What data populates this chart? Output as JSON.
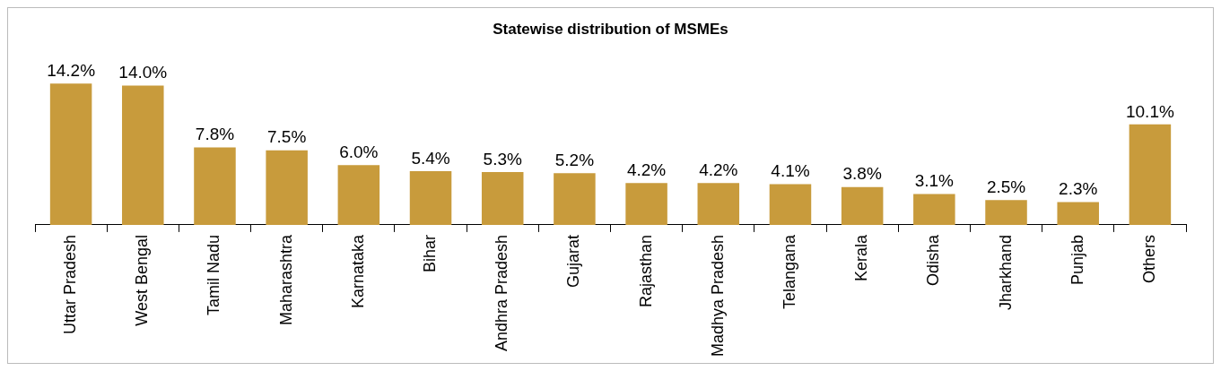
{
  "chart_data": {
    "type": "bar",
    "title": "Statewise distribution of MSMEs",
    "categories": [
      "Uttar Pradesh",
      "West Bengal",
      "Tamil Nadu",
      "Maharashtra",
      "Karnataka",
      "Bihar",
      "Andhra Pradesh",
      "Gujarat",
      "Rajasthan",
      "Madhya Pradesh",
      "Telangana",
      "Kerala",
      "Odisha",
      "Jharkhand",
      "Punjab",
      "Others"
    ],
    "values": [
      14.2,
      14.0,
      7.8,
      7.5,
      6.0,
      5.4,
      5.3,
      5.2,
      4.2,
      4.2,
      4.1,
      3.8,
      3.1,
      2.5,
      2.3,
      10.1
    ],
    "value_labels": [
      "14.2%",
      "14.0%",
      "7.8%",
      "7.5%",
      "6.0%",
      "5.4%",
      "5.3%",
      "5.2%",
      "4.2%",
      "4.2%",
      "4.1%",
      "3.8%",
      "3.1%",
      "2.5%",
      "2.3%",
      "10.1%"
    ],
    "color": "#c89b3c",
    "grid": false,
    "legend": false
  }
}
